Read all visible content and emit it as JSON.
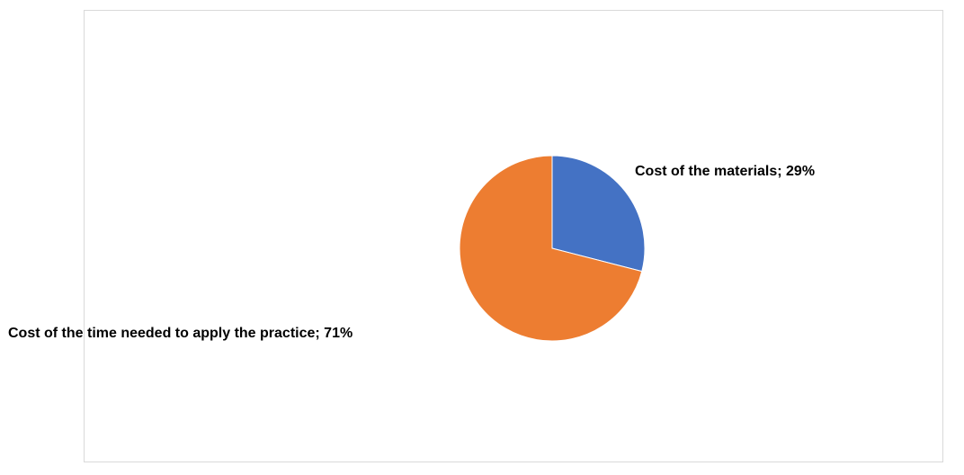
{
  "chart_data": {
    "type": "pie",
    "title": "",
    "start_angle_deg": 0,
    "direction": "clockwise",
    "slices": [
      {
        "label": "Cost of the materials",
        "value": 29,
        "display": "Cost of the materials; 29%",
        "color": "#4472C4"
      },
      {
        "label": "Cost of the time needed to apply the practice",
        "value": 71,
        "display": "Cost of the time needed to apply the practice; 71%",
        "color": "#ED7D31"
      }
    ]
  }
}
